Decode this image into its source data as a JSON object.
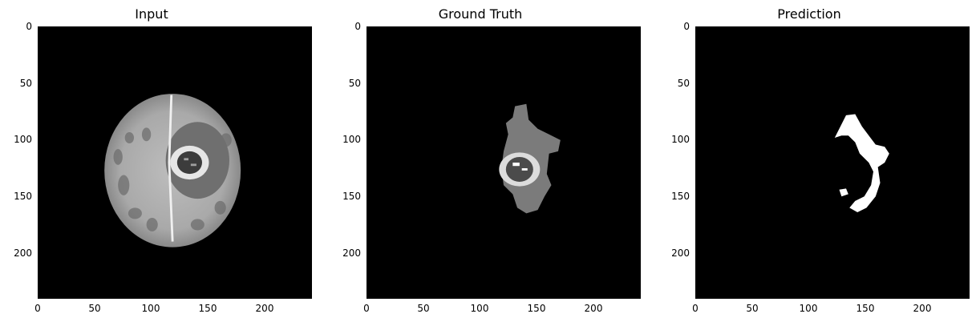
{
  "panels": [
    {
      "title": "Input"
    },
    {
      "title": "Ground Truth"
    },
    {
      "title": "Prediction"
    }
  ],
  "axes": {
    "y_ticks": [
      "0",
      "50",
      "100",
      "150",
      "200"
    ],
    "x_ticks": [
      "0",
      "50",
      "100",
      "150",
      "200"
    ]
  }
}
